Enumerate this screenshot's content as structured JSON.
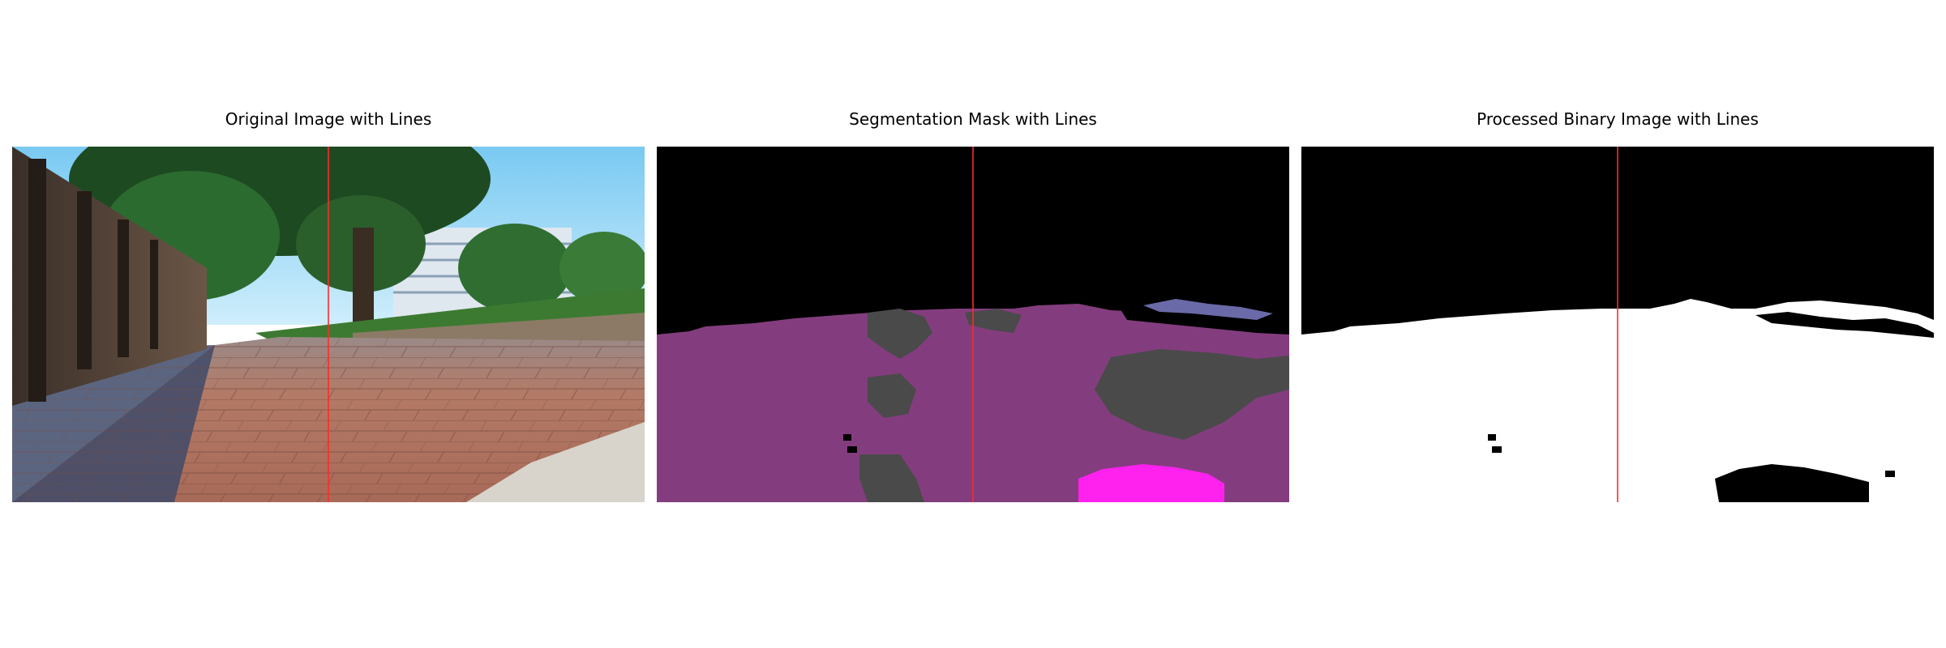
{
  "panels": [
    {
      "title": "Original Image with Lines"
    },
    {
      "title": "Segmentation Mask with Lines"
    },
    {
      "title": "Processed Binary Image with Lines"
    }
  ],
  "colors": {
    "line": "#ff2a2a",
    "sky": "#9fdcf7",
    "pavement": "#b87462",
    "mask_background": "#000000",
    "mask_ground": "#833d7e",
    "mask_gray": "#4a4a4a",
    "mask_magenta": "#ff22ee",
    "mask_blue": "#6a6aa8",
    "binary_white": "#ffffff",
    "binary_black": "#000000"
  }
}
